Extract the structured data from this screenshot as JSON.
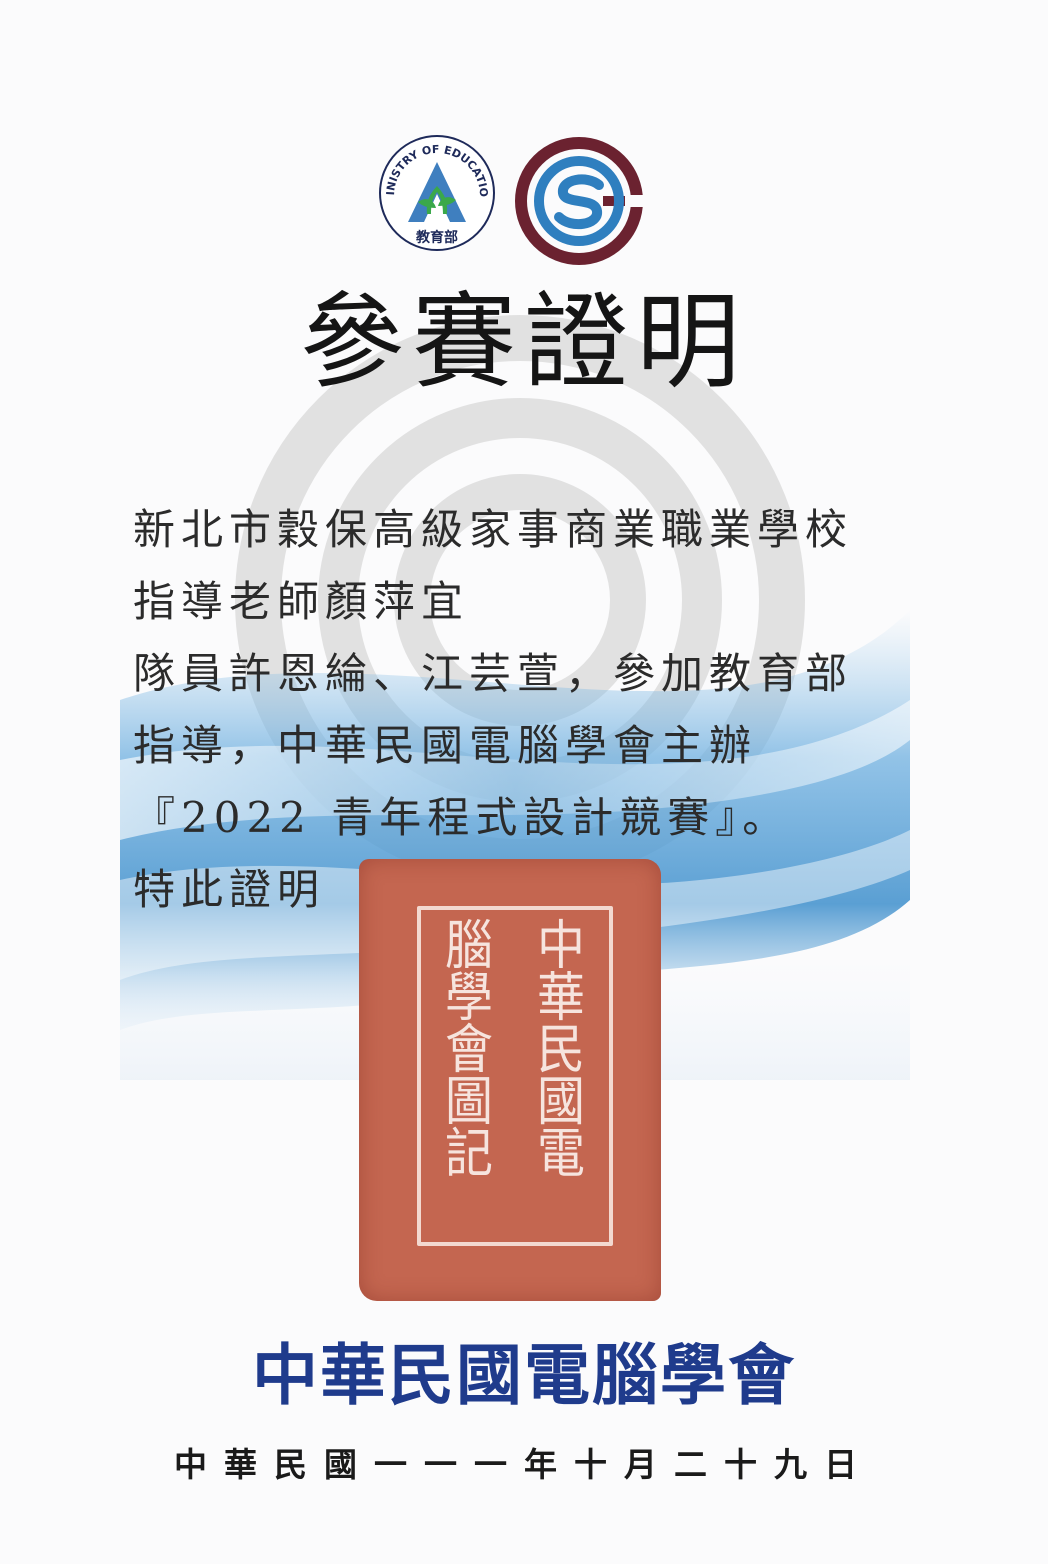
{
  "logos": {
    "moe_text": "MINISTRY OF EDUCATION",
    "moe_cjk": "教育部"
  },
  "title": "參賽證明",
  "body": {
    "line1": "新北市穀保高級家事商業職業學校",
    "line2": "指導老師顏萍宜",
    "line3": "隊員許恩綸、江芸萱，參加教育部",
    "line4": "指導，中華民國電腦學會主辦",
    "line5": "『2022 青年程式設計競賽』。",
    "line6": "特此證明"
  },
  "seal": {
    "text": "中華民國電腦學會圖記",
    "color": "#c46650"
  },
  "organization": "中華民國電腦學會",
  "date": "中華民國一一一年十月二十九日",
  "colors": {
    "org_blue": "#1f3b8c",
    "wave_blue": "#3f8fcf",
    "logo_maroon": "#6b2230",
    "logo_blue": "#2f7fbf"
  }
}
